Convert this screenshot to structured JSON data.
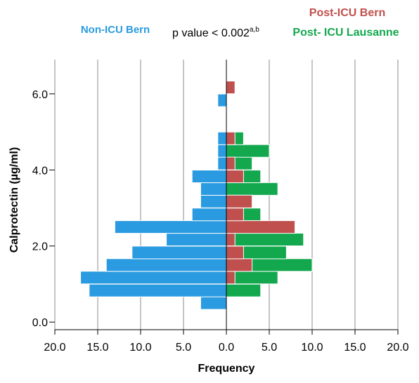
{
  "chart_data": {
    "type": "bar",
    "orientation": "horizontal-back-to-back",
    "xlabel": "Frequency",
    "ylabel": "Calprotectin (µg/ml)",
    "xlim": [
      -20,
      20
    ],
    "ylim": [
      -0.2,
      6.9
    ],
    "x_ticks": [
      "20.0",
      "15.0",
      "10.0",
      "5.0",
      "0.0",
      "5.0",
      "10.0",
      "15.0",
      "20.0"
    ],
    "x_tick_values": [
      -20,
      -15,
      -10,
      -5,
      0,
      5,
      10,
      15,
      20
    ],
    "y_ticks": [
      "0.0",
      "2.0",
      "4.0",
      "6.0"
    ],
    "y_tick_values": [
      0,
      2,
      4,
      6
    ],
    "grid": true,
    "bin_width": 0.333,
    "annotation": {
      "main": "p value < 0.002",
      "superscript": "a,b"
    },
    "colors": {
      "non_icu": "#2a9be0",
      "post_icu_bern": "#c0504d",
      "post_icu_lausanne": "#13a84e"
    },
    "series": [
      {
        "name": "Non-ICU Bern",
        "side": "left",
        "color": "#2a9be0",
        "bins": [
          {
            "y": 0.5,
            "value": 3
          },
          {
            "y": 0.83,
            "value": 16
          },
          {
            "y": 1.17,
            "value": 17
          },
          {
            "y": 1.5,
            "value": 14
          },
          {
            "y": 1.83,
            "value": 11
          },
          {
            "y": 2.17,
            "value": 7
          },
          {
            "y": 2.5,
            "value": 13
          },
          {
            "y": 2.83,
            "value": 4
          },
          {
            "y": 3.17,
            "value": 3
          },
          {
            "y": 3.5,
            "value": 3
          },
          {
            "y": 3.83,
            "value": 4
          },
          {
            "y": 4.17,
            "value": 1
          },
          {
            "y": 4.5,
            "value": 1
          },
          {
            "y": 4.83,
            "value": 1
          },
          {
            "y": 5.83,
            "value": 1
          }
        ]
      },
      {
        "name": "Post- ICU Lausanne",
        "side": "right",
        "color": "#13a84e",
        "bins": [
          {
            "y": 0.83,
            "value": 4
          },
          {
            "y": 1.17,
            "value": 6
          },
          {
            "y": 1.5,
            "value": 10
          },
          {
            "y": 1.83,
            "value": 7
          },
          {
            "y": 2.17,
            "value": 9
          },
          {
            "y": 2.5,
            "value": 1
          },
          {
            "y": 2.83,
            "value": 4
          },
          {
            "y": 3.17,
            "value": 1
          },
          {
            "y": 3.5,
            "value": 6
          },
          {
            "y": 3.83,
            "value": 4
          },
          {
            "y": 4.17,
            "value": 3
          },
          {
            "y": 4.5,
            "value": 5
          },
          {
            "y": 4.83,
            "value": 2
          }
        ]
      },
      {
        "name": "Post-ICU Bern",
        "side": "right",
        "color": "#c0504d",
        "bins": [
          {
            "y": 1.17,
            "value": 1
          },
          {
            "y": 1.5,
            "value": 3
          },
          {
            "y": 1.83,
            "value": 2
          },
          {
            "y": 2.17,
            "value": 1
          },
          {
            "y": 2.5,
            "value": 8
          },
          {
            "y": 2.83,
            "value": 2
          },
          {
            "y": 3.17,
            "value": 3
          },
          {
            "y": 3.83,
            "value": 2
          },
          {
            "y": 4.17,
            "value": 1
          },
          {
            "y": 4.83,
            "value": 1
          },
          {
            "y": 6.17,
            "value": 1
          }
        ]
      }
    ]
  }
}
